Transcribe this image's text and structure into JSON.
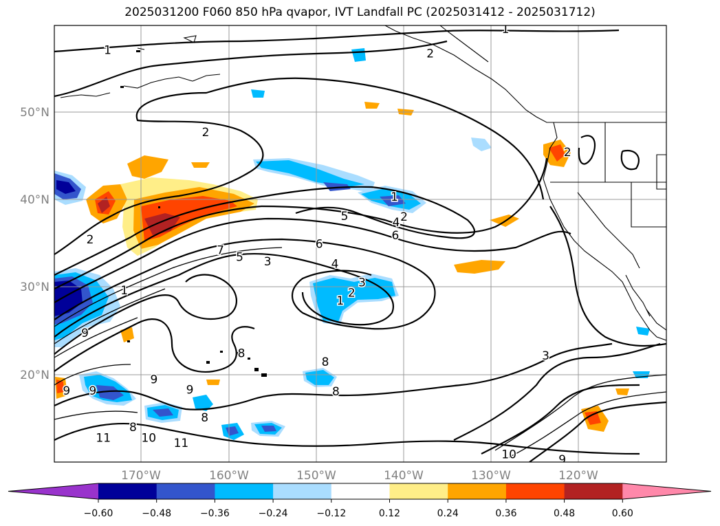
{
  "title": "2025031200 F060 850 hPa qvapor, IVT Landfall PC (2025031412 - 2025031712)",
  "lat_labels": [
    "20°N",
    "30°N",
    "40°N",
    "50°N"
  ],
  "lon_labels": [
    "170°W",
    "160°W",
    "150°W",
    "140°W",
    "130°W",
    "120°W"
  ],
  "colorbar": {
    "tick_labels": [
      "−0.60",
      "−0.48",
      "−0.36",
      "−0.24",
      "−0.12",
      "0.12",
      "0.24",
      "0.36",
      "0.48",
      "0.60"
    ],
    "colors": [
      "#9933cc",
      "#000099",
      "#3355cc",
      "#00bbff",
      "#aaddff",
      "#ffffff",
      "#ffee88",
      "#ffa500",
      "#ff4400",
      "#b22222",
      "#ff88aa"
    ]
  },
  "contour_labels": [
    {
      "text": "1",
      "lon": -173.9,
      "lat": 57.2
    },
    {
      "text": "1",
      "lon": -128.4,
      "lat": 59.6
    },
    {
      "text": "2",
      "lon": -137.0,
      "lat": 56.8
    },
    {
      "text": "2",
      "lon": -162.7,
      "lat": 47.8
    },
    {
      "text": "2",
      "lon": -121.3,
      "lat": 45.5
    },
    {
      "text": "1",
      "lon": -141.1,
      "lat": 40.4
    },
    {
      "text": "2",
      "lon": -140.0,
      "lat": 38.1
    },
    {
      "text": "4",
      "lon": -140.9,
      "lat": 37.5
    },
    {
      "text": "5",
      "lon": -146.8,
      "lat": 38.2
    },
    {
      "text": "6",
      "lon": -141.0,
      "lat": 36.0
    },
    {
      "text": "6",
      "lon": -149.7,
      "lat": 35.0
    },
    {
      "text": "2",
      "lon": -175.9,
      "lat": 35.5
    },
    {
      "text": "7",
      "lon": -161.0,
      "lat": 34.3
    },
    {
      "text": "5",
      "lon": -158.8,
      "lat": 33.5
    },
    {
      "text": "3",
      "lon": -155.6,
      "lat": 33.0
    },
    {
      "text": "4",
      "lon": -147.9,
      "lat": 32.7
    },
    {
      "text": "3",
      "lon": -144.8,
      "lat": 30.6
    },
    {
      "text": "2",
      "lon": -146.0,
      "lat": 29.4
    },
    {
      "text": "1",
      "lon": -147.3,
      "lat": 28.5
    },
    {
      "text": "1",
      "lon": -172.0,
      "lat": 29.7
    },
    {
      "text": "9",
      "lon": -176.5,
      "lat": 24.8
    },
    {
      "text": "8",
      "lon": -158.6,
      "lat": 22.5
    },
    {
      "text": "8",
      "lon": -149.0,
      "lat": 21.5
    },
    {
      "text": "9",
      "lon": -168.6,
      "lat": 19.5
    },
    {
      "text": "9",
      "lon": -178.6,
      "lat": 18.2
    },
    {
      "text": "9",
      "lon": -175.6,
      "lat": 18.2
    },
    {
      "text": "9",
      "lon": -164.5,
      "lat": 18.3
    },
    {
      "text": "8",
      "lon": -147.8,
      "lat": 18.1
    },
    {
      "text": "8",
      "lon": -162.8,
      "lat": 15.1
    },
    {
      "text": "8",
      "lon": -171.0,
      "lat": 14.0
    },
    {
      "text": "10",
      "lon": -169.2,
      "lat": 12.8
    },
    {
      "text": "11",
      "lon": -174.4,
      "lat": 12.8
    },
    {
      "text": "11",
      "lon": -165.5,
      "lat": 12.2
    },
    {
      "text": "10",
      "lon": -128.0,
      "lat": 10.9
    },
    {
      "text": "3",
      "lon": -123.8,
      "lat": 22.2
    },
    {
      "text": "9",
      "lon": -121.9,
      "lat": 10.3
    }
  ]
}
